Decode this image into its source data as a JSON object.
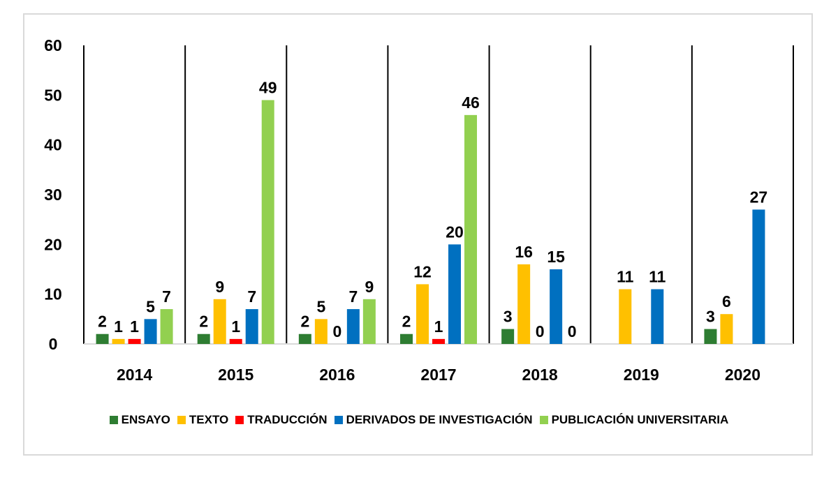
{
  "chart_data": {
    "type": "bar",
    "categories": [
      "2014",
      "2015",
      "2016",
      "2017",
      "2018",
      "2019",
      "2020"
    ],
    "ylim": [
      0,
      60
    ],
    "yticks": [
      0,
      10,
      20,
      30,
      40,
      50,
      60
    ],
    "grid": false,
    "legend_position": "bottom",
    "series": [
      {
        "name": "ENSAYO",
        "color": "#2e7d32",
        "values": [
          2,
          2,
          2,
          2,
          3,
          null,
          3
        ]
      },
      {
        "name": "TEXTO",
        "color": "#ffc000",
        "values": [
          1,
          9,
          5,
          12,
          16,
          11,
          6
        ]
      },
      {
        "name": "TRADUCCIÓN",
        "color": "#ff0000",
        "values": [
          1,
          1,
          0,
          1,
          0,
          null,
          null
        ]
      },
      {
        "name": "DERIVADOS DE INVESTIGACIÓN",
        "color": "#0070c0",
        "values": [
          5,
          7,
          7,
          20,
          15,
          11,
          27
        ]
      },
      {
        "name": "PUBLICACIÓN UNIVERSITARIA",
        "color": "#92d050",
        "values": [
          7,
          49,
          9,
          46,
          0,
          null,
          null
        ]
      }
    ]
  }
}
